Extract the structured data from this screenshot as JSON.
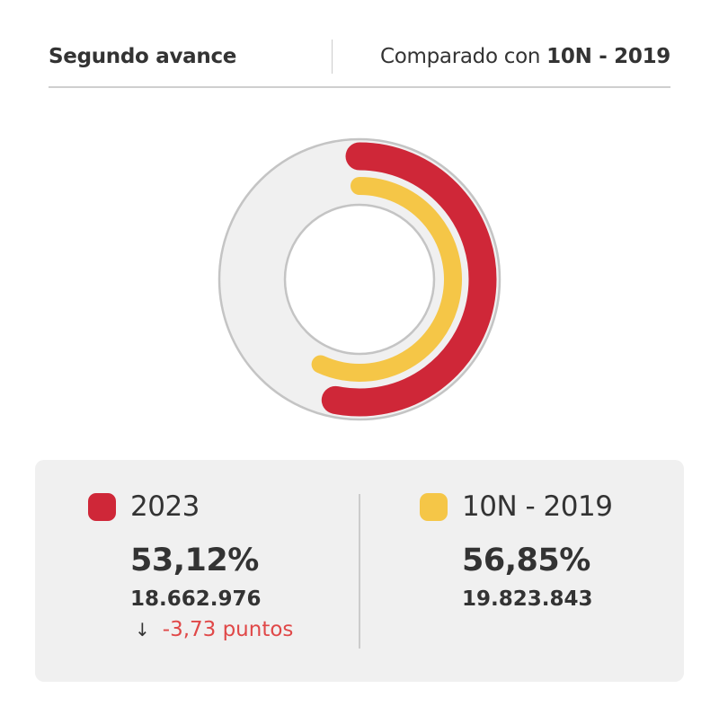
{
  "header": {
    "title": "Segundo avance",
    "compare_prefix": "Comparado con",
    "compare_target": "10N - 2019"
  },
  "colors": {
    "series_2023": "#cf2738",
    "series_2019": "#f5c647",
    "ring_background": "#f0f0f0",
    "ring_border": "#c4c4c4",
    "negative_diff": "#e04848",
    "panel_background": "#f0f0f0"
  },
  "legend": {
    "current": {
      "label": "2023",
      "percent": "53,12%",
      "votes": "18.662.976",
      "diff_icon": "arrow-down-icon",
      "diff_arrow": "↓",
      "diff": "-3,73 puntos"
    },
    "previous": {
      "label": "10N - 2019",
      "percent": "56,85%",
      "votes": "19.823.843"
    }
  },
  "chart_data": {
    "type": "radial-bar",
    "title": "Segundo avance",
    "subtitle": "Comparado con 10N - 2019",
    "categories": [
      "2023",
      "10N - 2019"
    ],
    "series": [
      {
        "name": "2023",
        "value": 53.12,
        "votes": 18662976,
        "color": "#cf2738",
        "ring": "outer"
      },
      {
        "name": "10N - 2019",
        "value": 56.85,
        "votes": 19823843,
        "color": "#f5c647",
        "ring": "inner"
      }
    ],
    "range": [
      0,
      100
    ],
    "start_angle": "12 o'clock, clockwise",
    "difference": "-3,73 puntos"
  }
}
